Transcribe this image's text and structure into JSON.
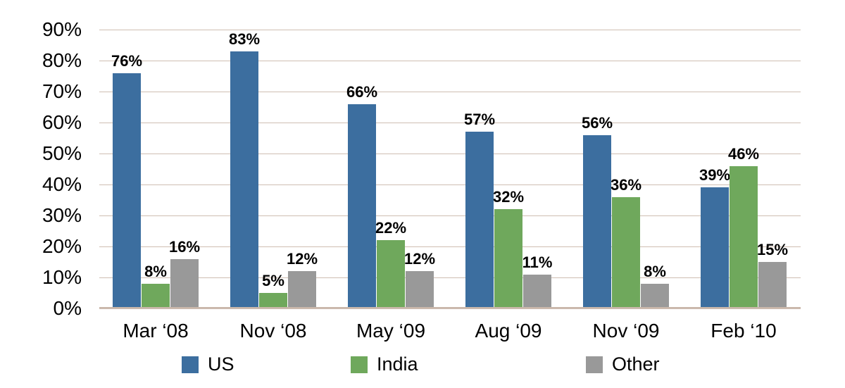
{
  "chart_data": {
    "type": "bar",
    "title": "",
    "categories": [
      "Mar ‘08",
      "Nov ‘08",
      "May ‘09",
      "Aug ‘09",
      "Nov ‘09",
      "Feb ‘10"
    ],
    "series": [
      {
        "name": "US",
        "color": "#3C6E9F",
        "values": [
          76,
          83,
          66,
          57,
          56,
          39
        ]
      },
      {
        "name": "India",
        "color": "#6FA85C",
        "values": [
          8,
          5,
          22,
          32,
          36,
          46
        ]
      },
      {
        "name": "Other",
        "color": "#999999",
        "values": [
          16,
          12,
          12,
          11,
          8,
          15
        ]
      }
    ],
    "data_labels": [
      [
        "76%",
        "8%",
        "16%"
      ],
      [
        "83%",
        "5%",
        "12%"
      ],
      [
        "66%",
        "22%",
        "12%"
      ],
      [
        "57%",
        "32%",
        "11%"
      ],
      [
        "56%",
        "36%",
        "8%"
      ],
      [
        "39%",
        "46%",
        "15%"
      ]
    ],
    "value_suffix": "%",
    "y_ticks": [
      "90%",
      "80%",
      "70%",
      "60%",
      "50%",
      "40%",
      "30%",
      "20%",
      "10%",
      "0%"
    ],
    "ylim": [
      0,
      90
    ],
    "grid": true,
    "gridline_color": "#CFBEB2",
    "axis_line_color": "#C9B7AA",
    "text_color": "#000000",
    "legend_position": "bottom",
    "legend_labels": [
      "US",
      "India",
      "Other"
    ]
  }
}
